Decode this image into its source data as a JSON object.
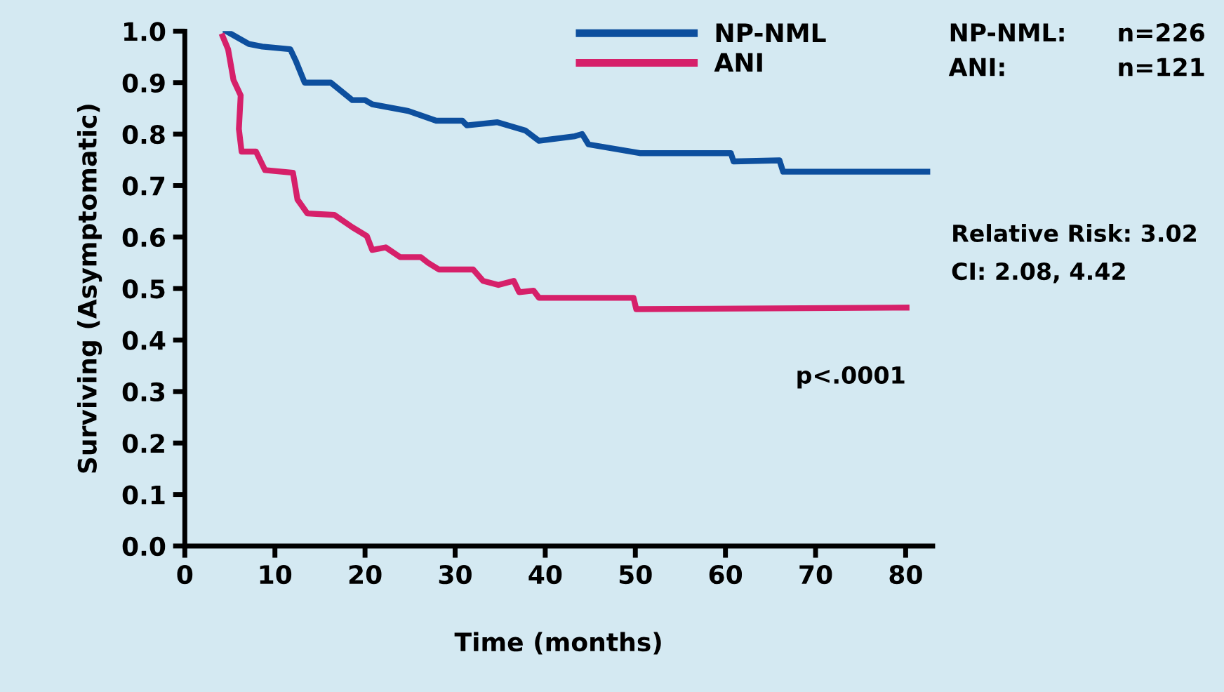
{
  "chart_data": {
    "type": "step",
    "xlabel": "Time (months)",
    "ylabel": "Surviving (Asymptomatic)",
    "xlim": [
      0,
      83
    ],
    "xticks": [
      0,
      10,
      20,
      30,
      40,
      50,
      60,
      70,
      80
    ],
    "ylim": [
      0,
      1
    ],
    "yticks": [
      {
        "value": 0,
        "label": "0.0"
      },
      {
        "value": 0.1,
        "label": "0.1"
      },
      {
        "value": 0.2,
        "label": "0.2"
      },
      {
        "value": 0.3,
        "label": "0.3"
      },
      {
        "value": 0.4,
        "label": "0.4"
      },
      {
        "value": 0.5,
        "label": "0.5"
      },
      {
        "value": 0.6,
        "label": "0.6"
      },
      {
        "value": 0.7,
        "label": "0.7"
      },
      {
        "value": 0.8,
        "label": "0.8"
      },
      {
        "value": 0.9,
        "label": "0.9"
      },
      {
        "value": 1,
        "label": "1.0"
      }
    ],
    "grid": false,
    "legend": "top right",
    "line_style": "solid",
    "marker": "none",
    "series": [
      {
        "name": "NP-NML",
        "color": "#0d4f9e",
        "x": [
          4.6,
          6.0,
          7.1,
          8.6,
          11.7,
          12.3,
          13.3,
          14.0,
          16.2,
          18.6,
          20.0,
          20.8,
          24.8,
          27.9,
          30.8,
          31.3,
          34.7,
          37.8,
          39.3,
          43.3,
          44.1,
          44.8,
          50.5,
          60.6,
          60.9,
          66.0,
          66.4,
          82.4
        ],
        "values": [
          1.0,
          0.986,
          0.975,
          0.97,
          0.965,
          0.943,
          0.9,
          0.9,
          0.9,
          0.866,
          0.866,
          0.858,
          0.845,
          0.826,
          0.826,
          0.817,
          0.823,
          0.807,
          0.787,
          0.796,
          0.8,
          0.78,
          0.763,
          0.763,
          0.747,
          0.749,
          0.727,
          0.727
        ]
      },
      {
        "name": "ANI",
        "color": "#d6206a",
        "x": [
          4.2,
          4.8,
          5.4,
          6.2,
          6.0,
          6.3,
          7.9,
          8.9,
          12.0,
          12.5,
          13.6,
          16.6,
          18.6,
          20.2,
          20.8,
          22.3,
          23.9,
          26.2,
          27.0,
          28.2,
          32.0,
          33.1,
          34.8,
          36.5,
          37.1,
          38.7,
          39.3,
          49.8,
          50.1,
          80.1
        ],
        "values": [
          0.99,
          0.965,
          0.905,
          0.875,
          0.81,
          0.766,
          0.766,
          0.73,
          0.725,
          0.673,
          0.646,
          0.643,
          0.619,
          0.602,
          0.575,
          0.58,
          0.561,
          0.561,
          0.55,
          0.537,
          0.537,
          0.515,
          0.507,
          0.515,
          0.493,
          0.496,
          0.482,
          0.482,
          0.46,
          0.463
        ]
      }
    ],
    "annotations": [
      "NP-NML:",
      "n=226",
      "ANI:",
      "n=121",
      "Relative Risk: 3.02",
      "CI: 2.08, 4.42",
      "p<.0001"
    ]
  }
}
